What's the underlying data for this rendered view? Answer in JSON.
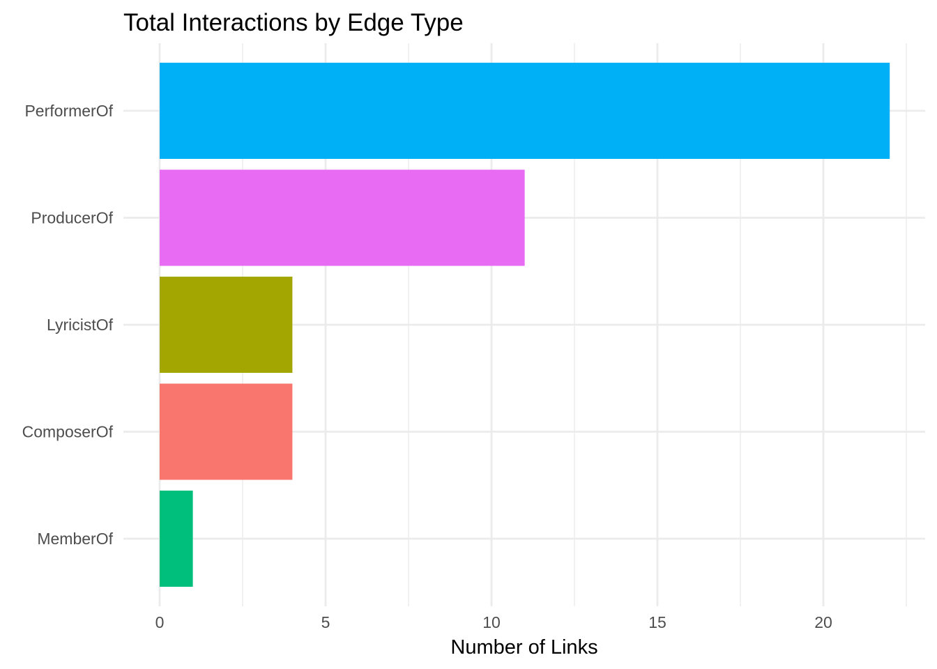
{
  "chart_data": {
    "type": "bar",
    "orientation": "horizontal",
    "title": "Total Interactions by Edge Type",
    "xlabel": "Number of Links",
    "ylabel": "",
    "categories": [
      "PerformerOf",
      "ProducerOf",
      "LyricistOf",
      "ComposerOf",
      "MemberOf"
    ],
    "values": [
      22,
      11,
      4,
      4,
      1
    ],
    "colors": [
      "#00B0F6",
      "#E76BF3",
      "#A3A500",
      "#F8766D",
      "#00BF7D"
    ],
    "xlim": [
      0,
      23
    ],
    "xticks": [
      0,
      5,
      10,
      15,
      20
    ],
    "xtick_labels": [
      "0",
      "5",
      "10",
      "15",
      "20"
    ],
    "grid": true,
    "legend": "none"
  }
}
